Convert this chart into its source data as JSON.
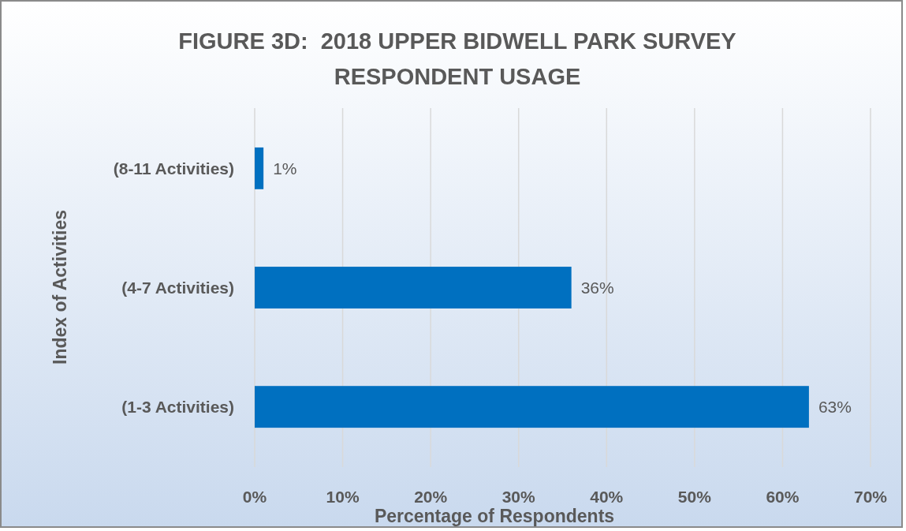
{
  "chart_data": {
    "type": "bar",
    "orientation": "horizontal",
    "title": "FIGURE 3D:  2018 UPPER BIDWELL PARK SURVEY RESPONDENT USAGE",
    "xlabel": "Percentage of Respondents",
    "ylabel": "Index of Activities",
    "categories": [
      "(8-11 Activities)",
      "(4-7 Activities)",
      "(1-3 Activities)"
    ],
    "values": [
      1,
      36,
      63
    ],
    "value_labels": [
      "1%",
      "36%",
      "63%"
    ],
    "color": "#0070c0",
    "xlim": [
      0,
      70
    ],
    "xticks": [
      {
        "value": 0,
        "label": "0%"
      },
      {
        "value": 10,
        "label": "10%"
      },
      {
        "value": 20,
        "label": "20%"
      },
      {
        "value": 30,
        "label": "30%"
      },
      {
        "value": 40,
        "label": "40%"
      },
      {
        "value": 50,
        "label": "50%"
      },
      {
        "value": 60,
        "label": "60%"
      },
      {
        "value": 70,
        "label": "70%"
      }
    ],
    "grid": "x"
  }
}
